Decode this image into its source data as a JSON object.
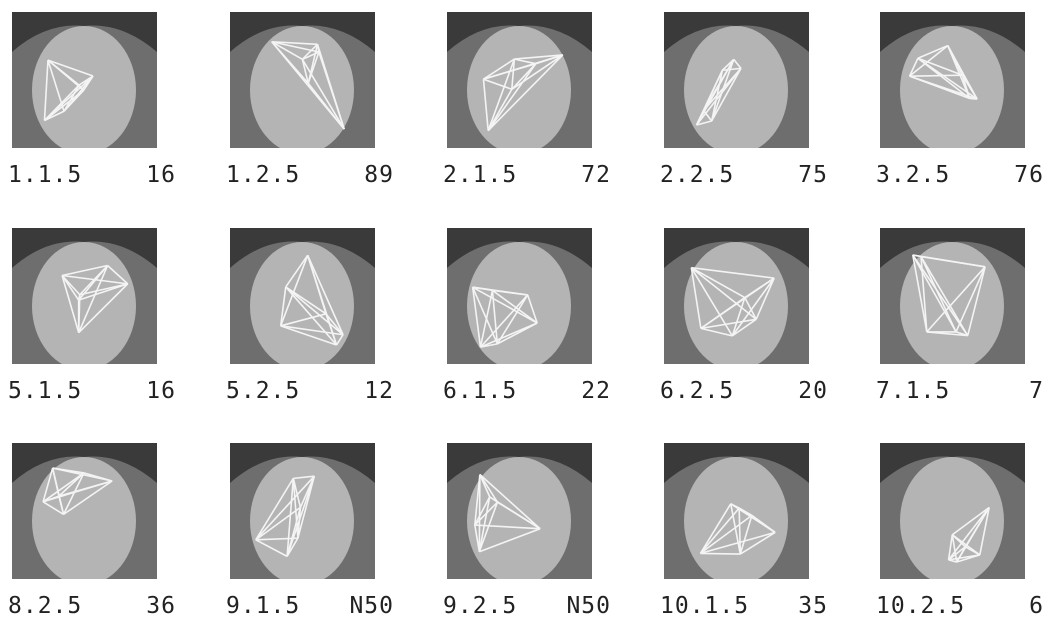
{
  "figure": {
    "items": [
      {
        "id": "1.1.5",
        "score": "16"
      },
      {
        "id": "1.2.5",
        "score": "89"
      },
      {
        "id": "2.1.5",
        "score": "72"
      },
      {
        "id": "2.2.5",
        "score": "75"
      },
      {
        "id": "3.2.5",
        "score": "76"
      },
      {
        "id": "5.1.5",
        "score": "16"
      },
      {
        "id": "5.2.5",
        "score": "12"
      },
      {
        "id": "6.1.5",
        "score": "22"
      },
      {
        "id": "6.2.5",
        "score": "20"
      },
      {
        "id": "7.1.5",
        "score": "7"
      },
      {
        "id": "8.2.5",
        "score": "36"
      },
      {
        "id": "9.1.5",
        "score": "N50"
      },
      {
        "id": "9.2.5",
        "score": "N50"
      },
      {
        "id": "10.1.5",
        "score": "35"
      },
      {
        "id": "10.2.5",
        "score": "6"
      }
    ]
  }
}
